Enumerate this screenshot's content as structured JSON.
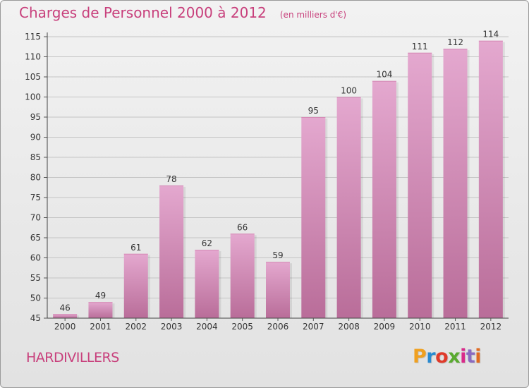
{
  "header": {
    "title": "Charges de Personnel 2000 à 2012",
    "subtitle": "(en milliers d'€)"
  },
  "footer": {
    "commune": "HARDIVILLERS",
    "logo_text": "Proxiti",
    "logo_colors": [
      "#f0a020",
      "#2a8ad0",
      "#e03a2a",
      "#5aaa30",
      "#d92a8a",
      "#8b6ac0",
      "#e06a20"
    ]
  },
  "colors": {
    "bar_top": "#e4a8cf",
    "bar_bottom": "#b96d99",
    "title": "#c8407c",
    "grid": "#c4c4c4"
  },
  "chart_data": {
    "type": "bar",
    "title": "Charges de Personnel 2000 à 2012",
    "subtitle": "(en milliers d'€)",
    "xlabel": "",
    "ylabel": "",
    "categories": [
      "2000",
      "2001",
      "2002",
      "2003",
      "2004",
      "2005",
      "2006",
      "2007",
      "2008",
      "2009",
      "2010",
      "2011",
      "2012"
    ],
    "values": [
      46,
      49,
      61,
      78,
      62,
      66,
      59,
      95,
      100,
      104,
      111,
      112,
      114
    ],
    "ylim": [
      45,
      115
    ],
    "yticks": [
      45,
      50,
      55,
      60,
      65,
      70,
      75,
      80,
      85,
      90,
      95,
      100,
      105,
      110,
      115
    ],
    "grid": true,
    "data_labels": true,
    "legend": "none"
  }
}
